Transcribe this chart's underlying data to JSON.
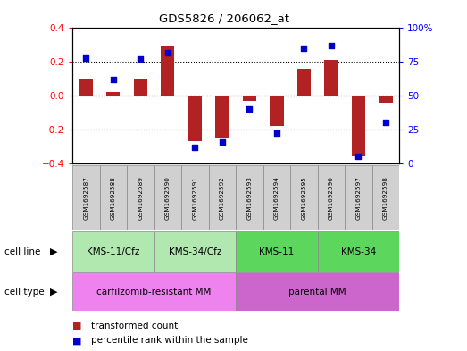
{
  "title": "GDS5826 / 206062_at",
  "samples": [
    "GSM1692587",
    "GSM1692588",
    "GSM1692589",
    "GSM1692590",
    "GSM1692591",
    "GSM1692592",
    "GSM1692593",
    "GSM1692594",
    "GSM1692595",
    "GSM1692596",
    "GSM1692597",
    "GSM1692598"
  ],
  "transformed_count": [
    0.1,
    0.02,
    0.1,
    0.29,
    -0.27,
    -0.25,
    -0.03,
    -0.18,
    0.16,
    0.21,
    -0.36,
    -0.04
  ],
  "percentile_rank": [
    78,
    62,
    77,
    82,
    12,
    16,
    40,
    22,
    85,
    87,
    5,
    30
  ],
  "ylim_left": [
    -0.4,
    0.4
  ],
  "ylim_right": [
    0,
    100
  ],
  "yticks_left": [
    -0.4,
    -0.2,
    0.0,
    0.2,
    0.4
  ],
  "yticks_right": [
    0,
    25,
    50,
    75,
    100
  ],
  "ytick_labels_right": [
    "0",
    "25",
    "50",
    "75",
    "100%"
  ],
  "bar_color": "#b22222",
  "dot_color": "#0000cd",
  "cell_line_groups": [
    {
      "label": "KMS-11/Cfz",
      "start": 0,
      "end": 3,
      "color": "#b0e8b0"
    },
    {
      "label": "KMS-34/Cfz",
      "start": 3,
      "end": 6,
      "color": "#b0e8b0"
    },
    {
      "label": "KMS-11",
      "start": 6,
      "end": 9,
      "color": "#5cd65c"
    },
    {
      "label": "KMS-34",
      "start": 9,
      "end": 12,
      "color": "#5cd65c"
    }
  ],
  "cell_type_groups": [
    {
      "label": "carfilzomib-resistant MM",
      "start": 0,
      "end": 6,
      "color": "#ee82ee"
    },
    {
      "label": "parental MM",
      "start": 6,
      "end": 12,
      "color": "#cc66cc"
    }
  ],
  "legend_items": [
    {
      "color": "#b22222",
      "label": "transformed count"
    },
    {
      "color": "#0000cd",
      "label": "percentile rank within the sample"
    }
  ],
  "cell_line_label": "cell line",
  "cell_type_label": "cell type",
  "bg_color_samples": "#d0d0d0"
}
